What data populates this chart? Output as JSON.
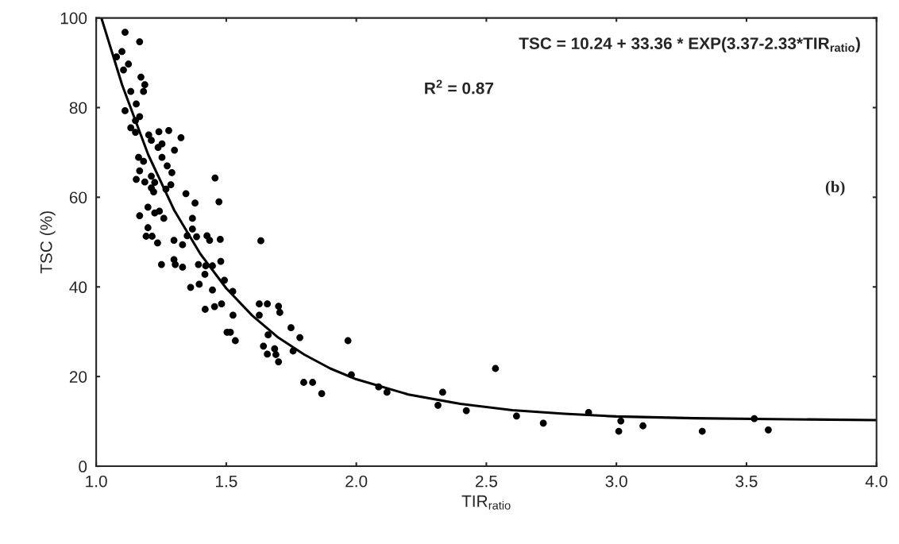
{
  "chart_data": {
    "type": "scatter",
    "xlabel": "TIR$_{ratio}$",
    "ylabel": "TSC (%)",
    "annotations": [
      "TSC = 10.24 + 33.36 * EXP(3.37-2.33*TIR$_{ratio}$)",
      "R$^{2}$ = 0.87",
      "(b)"
    ],
    "xlim": [
      1.0,
      4.0
    ],
    "xticks": [
      {
        "value": 1.0,
        "label": "1.0"
      },
      {
        "value": 1.5,
        "label": "1.5"
      },
      {
        "value": 2.0,
        "label": "2.0"
      },
      {
        "value": 2.5,
        "label": "2.5"
      },
      {
        "value": 3.0,
        "label": "3.0"
      },
      {
        "value": 3.5,
        "label": "3.5"
      },
      {
        "value": 4.0,
        "label": "4.0"
      }
    ],
    "ylim": [
      0,
      100
    ],
    "yticks": [
      0,
      20,
      40,
      60,
      80,
      100
    ],
    "grid": false,
    "legend": false,
    "series": [
      {
        "color": "#000000",
        "marker": "circle",
        "x": [
          1.111,
          1.167,
          1.099,
          1.078,
          1.124,
          1.105,
          1.172,
          1.187,
          1.182,
          1.133,
          1.154,
          1.167,
          1.111,
          1.151,
          1.133,
          1.151,
          1.202,
          1.241,
          1.279,
          1.326,
          1.212,
          1.253,
          1.238,
          1.301,
          1.163,
          1.253,
          1.182,
          1.273,
          1.167,
          1.291,
          1.154,
          1.212,
          1.187,
          1.225,
          1.287,
          1.457,
          1.212,
          1.268,
          1.221,
          1.345,
          1.472,
          1.38,
          1.199,
          1.167,
          1.243,
          1.225,
          1.26,
          1.37,
          1.199,
          1.37,
          1.192,
          1.215,
          1.236,
          1.299,
          1.332,
          1.35,
          1.386,
          1.426,
          1.436,
          1.477,
          1.633,
          1.251,
          1.299,
          1.304,
          1.332,
          1.393,
          1.421,
          1.447,
          1.479,
          1.418,
          1.493,
          1.363,
          1.396,
          1.447,
          1.525,
          1.419,
          1.455,
          1.482,
          1.526,
          1.503,
          1.516,
          1.535,
          1.627,
          1.658,
          1.627,
          1.701,
          1.706,
          1.661,
          1.749,
          1.783,
          1.643,
          1.658,
          1.686,
          1.691,
          1.701,
          1.757,
          1.968,
          1.981,
          1.798,
          1.832,
          1.867,
          2.086,
          2.118,
          2.535,
          2.314,
          2.332,
          2.423,
          2.616,
          2.719,
          2.893,
          3.017,
          3.009,
          3.102,
          3.33,
          3.53,
          3.584
        ],
        "values": [
          96.8,
          94.7,
          92.5,
          91.3,
          89.7,
          88.4,
          86.8,
          85.1,
          83.6,
          83.6,
          80.8,
          78.0,
          79.3,
          77.1,
          75.5,
          74.5,
          73.9,
          74.6,
          74.9,
          73.3,
          72.7,
          71.9,
          71.1,
          70.5,
          68.9,
          68.9,
          68.0,
          67.0,
          65.9,
          65.5,
          64.0,
          64.7,
          63.4,
          63.3,
          62.8,
          64.3,
          62.1,
          61.8,
          61.2,
          60.8,
          59.0,
          58.7,
          57.8,
          55.9,
          56.9,
          56.5,
          55.3,
          55.3,
          53.2,
          52.9,
          51.3,
          51.3,
          49.8,
          50.4,
          49.4,
          51.4,
          51.2,
          51.4,
          50.4,
          50.6,
          50.3,
          45.0,
          46.1,
          45.0,
          44.4,
          45.0,
          44.7,
          44.7,
          45.7,
          42.8,
          41.5,
          39.9,
          40.6,
          39.3,
          39.0,
          35.0,
          35.6,
          36.2,
          33.7,
          29.9,
          29.9,
          28.0,
          36.2,
          36.2,
          33.7,
          35.7,
          34.3,
          29.3,
          30.9,
          28.7,
          26.8,
          25.0,
          26.2,
          24.9,
          23.3,
          25.7,
          28.0,
          20.4,
          18.7,
          18.7,
          16.2,
          17.7,
          16.5,
          21.8,
          13.6,
          16.5,
          12.4,
          11.2,
          9.6,
          12.0,
          10.1,
          7.8,
          9.0,
          7.8,
          10.6,
          8.1
        ]
      },
      {
        "type": "line",
        "color": "#000000",
        "marker": "none",
        "line_style": "solid",
        "x": [
          1.02,
          1.1,
          1.2,
          1.3,
          1.4,
          1.5,
          1.6,
          1.7,
          1.8,
          1.9,
          2.0,
          2.2,
          2.4,
          2.6,
          2.8,
          3.0,
          3.3,
          3.6,
          4.0
        ],
        "values": [
          100.0,
          85.0,
          69.5,
          57.1,
          47.4,
          39.7,
          33.6,
          28.7,
          24.9,
          21.8,
          19.4,
          16.0,
          13.9,
          12.5,
          11.7,
          11.1,
          10.7,
          10.5,
          10.3
        ]
      }
    ]
  }
}
